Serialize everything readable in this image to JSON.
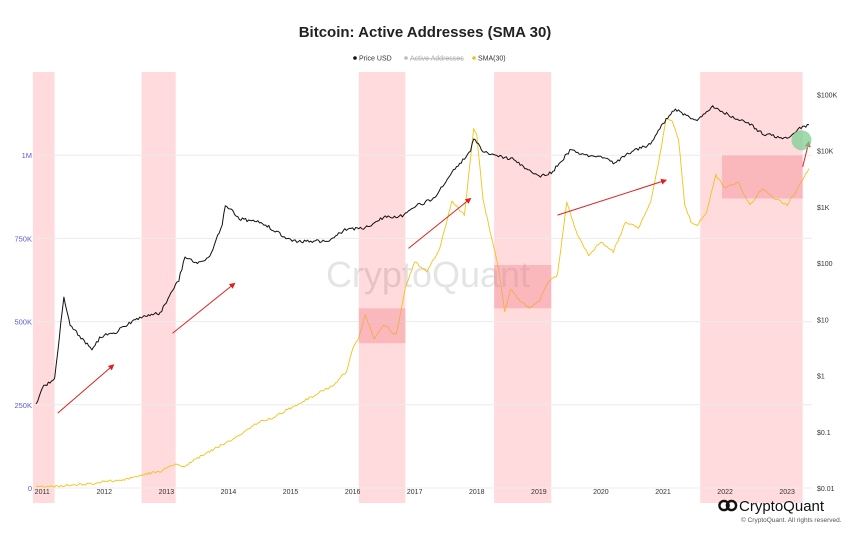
{
  "chart_data": {
    "type": "line",
    "title": "Bitcoin: Active Addresses (SMA 30)",
    "legend": {
      "placement": "top-center",
      "items": [
        {
          "label": "Price USD",
          "color": "#111111",
          "visible": true
        },
        {
          "label": "Active Addresses",
          "color": "#b0b0b0",
          "visible": false
        },
        {
          "label": "SMA(30)",
          "color": "#f2c21a",
          "visible": true
        }
      ]
    },
    "x_axis": {
      "ticks": [
        "2011",
        "2012",
        "2013",
        "2014",
        "2015",
        "2016",
        "2017",
        "2018",
        "2019",
        "2020",
        "2021",
        "2022",
        "2023"
      ],
      "range": [
        2010.9,
        2023.4
      ]
    },
    "y_left": {
      "ticks": [
        "0",
        "250K",
        "500K",
        "750K",
        "1M"
      ],
      "tick_values": [
        0,
        250000,
        500000,
        750000,
        1000000
      ],
      "range": [
        0,
        1250000
      ],
      "color": "#5b5bd6"
    },
    "y_right": {
      "scale": "log",
      "ticks": [
        "$100K",
        "$10K",
        "$1K",
        "$100",
        "$10",
        "$1",
        "$0.1",
        "$0.01"
      ],
      "tick_values": [
        100000,
        10000,
        1000,
        100,
        10,
        1,
        0.1,
        0.01
      ],
      "range": [
        0.01,
        250000
      ]
    },
    "grid": true,
    "series": [
      {
        "name": "SMA(30)",
        "axis": "left",
        "color": "#f2c21a",
        "x": [
          2010.9,
          2011.2,
          2011.5,
          2011.8,
          2012.0,
          2012.3,
          2012.6,
          2012.9,
          2013.1,
          2013.3,
          2013.5,
          2013.7,
          2013.9,
          2014.1,
          2014.3,
          2014.5,
          2014.7,
          2014.9,
          2015.1,
          2015.3,
          2015.5,
          2015.7,
          2015.9,
          2016.0,
          2016.1,
          2016.2,
          2016.35,
          2016.5,
          2016.7,
          2016.85,
          2017.0,
          2017.2,
          2017.4,
          2017.6,
          2017.8,
          2017.95,
          2018.0,
          2018.1,
          2018.25,
          2018.35,
          2018.45,
          2018.55,
          2018.7,
          2018.85,
          2019.0,
          2019.15,
          2019.3,
          2019.45,
          2019.6,
          2019.8,
          2020.0,
          2020.2,
          2020.4,
          2020.6,
          2020.8,
          2020.95,
          2021.05,
          2021.15,
          2021.25,
          2021.35,
          2021.45,
          2021.55,
          2021.7,
          2021.85,
          2022.0,
          2022.2,
          2022.4,
          2022.6,
          2022.8,
          2023.0,
          2023.2,
          2023.35
        ],
        "values": [
          5000,
          4000,
          10000,
          12000,
          20000,
          24000,
          40000,
          50000,
          70000,
          65000,
          90000,
          110000,
          130000,
          150000,
          175000,
          200000,
          210000,
          230000,
          250000,
          270000,
          290000,
          310000,
          350000,
          420000,
          450000,
          520000,
          450000,
          490000,
          460000,
          600000,
          680000,
          650000,
          720000,
          860000,
          820000,
          1080000,
          1060000,
          870000,
          740000,
          660000,
          530000,
          600000,
          560000,
          540000,
          560000,
          620000,
          640000,
          860000,
          770000,
          700000,
          740000,
          710000,
          800000,
          780000,
          860000,
          1000000,
          1110000,
          1100000,
          1050000,
          850000,
          800000,
          790000,
          830000,
          940000,
          900000,
          920000,
          850000,
          900000,
          870000,
          850000,
          910000,
          960000
        ]
      },
      {
        "name": "Price USD",
        "axis": "right",
        "color": "#111111",
        "x": [
          2010.9,
          2011.0,
          2011.2,
          2011.35,
          2011.45,
          2011.6,
          2011.8,
          2011.95,
          2012.2,
          2012.5,
          2012.9,
          2013.2,
          2013.3,
          2013.5,
          2013.7,
          2013.9,
          2013.95,
          2014.2,
          2014.5,
          2014.8,
          2015.0,
          2015.3,
          2015.6,
          2015.9,
          2016.2,
          2016.5,
          2016.8,
          2017.0,
          2017.3,
          2017.6,
          2017.9,
          2017.95,
          2018.1,
          2018.3,
          2018.6,
          2018.9,
          2019.0,
          2019.2,
          2019.5,
          2019.8,
          2020.0,
          2020.2,
          2020.5,
          2020.8,
          2021.0,
          2021.2,
          2021.4,
          2021.55,
          2021.8,
          2021.9,
          2022.1,
          2022.4,
          2022.6,
          2022.9,
          2023.0,
          2023.2,
          2023.35
        ],
        "values": [
          0.3,
          0.6,
          0.9,
          25,
          8,
          5,
          3,
          5,
          6,
          10,
          13,
          50,
          130,
          100,
          130,
          500,
          1100,
          600,
          550,
          350,
          250,
          240,
          250,
          400,
          420,
          650,
          700,
          1000,
          1400,
          4000,
          10000,
          16000,
          10000,
          8000,
          7000,
          4000,
          3500,
          4000,
          10000,
          8000,
          8000,
          6000,
          9500,
          13000,
          30000,
          55000,
          40000,
          35000,
          60000,
          55000,
          40000,
          30000,
          20000,
          17000,
          17000,
          25000,
          29000
        ]
      }
    ],
    "highlighted_periods": [
      {
        "start": 2010.85,
        "end": 2011.2
      },
      {
        "start": 2012.6,
        "end": 2013.15
      },
      {
        "start": 2016.1,
        "end": 2016.85
      },
      {
        "start": 2018.28,
        "end": 2019.2
      },
      {
        "start": 2021.6,
        "end": 2023.25
      }
    ]
  },
  "watermark": "CryptoQuant",
  "brand": {
    "name": "CryptoQuant",
    "copyright": "© CryptoQuant. All rights reserved."
  }
}
